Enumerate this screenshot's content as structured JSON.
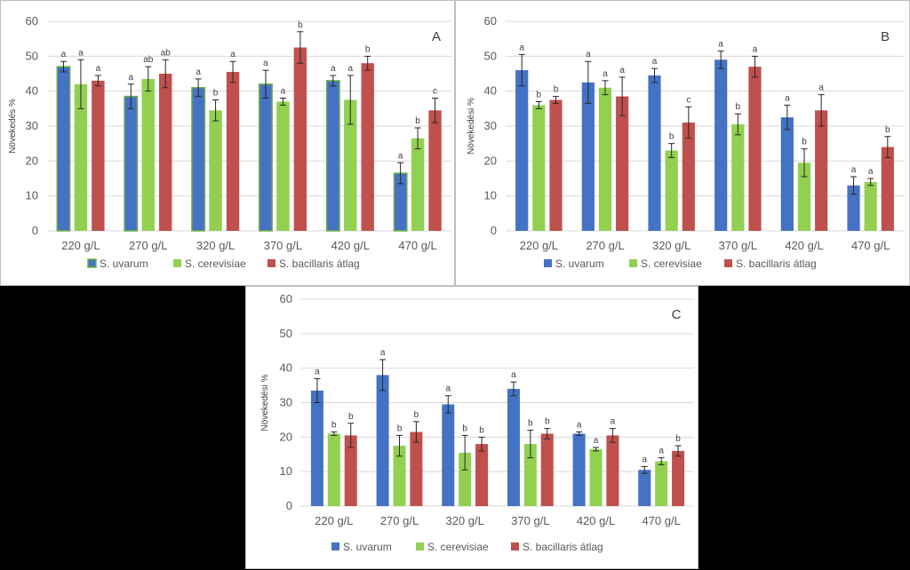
{
  "chart_data": [
    {
      "type": "bar",
      "panel_label": "A",
      "ylabel": "Növekedés %",
      "ylim": [
        0,
        60
      ],
      "yticks": [
        0,
        10,
        20,
        30,
        40,
        50,
        60
      ],
      "categories": [
        "220 g/L",
        "270 g/L",
        "320 g/L",
        "370 g/L",
        "420 g/L",
        "470 g/L"
      ],
      "series": [
        {
          "name": "S. uvarum",
          "color": "#4472c4",
          "values": [
            47,
            38.5,
            41,
            42,
            43,
            16.5
          ],
          "errors": [
            1.5,
            3.5,
            2.5,
            4,
            1.5,
            3
          ],
          "labels": [
            "a",
            "a",
            "a",
            "a",
            "a",
            "a"
          ]
        },
        {
          "name": "S. cerevisiae",
          "color": "#92d050",
          "values": [
            42,
            43.5,
            34.5,
            37,
            37.5,
            26.5
          ],
          "errors": [
            7,
            3.5,
            3,
            1,
            7,
            3
          ],
          "labels": [
            "a",
            "ab",
            "b",
            "a",
            "a",
            "b"
          ]
        },
        {
          "name": "S. bacillaris átlag",
          "color": "#c0504d",
          "values": [
            43,
            45,
            45.5,
            52.5,
            48,
            34.5
          ],
          "errors": [
            1.5,
            4,
            3,
            4.5,
            2,
            3.5
          ],
          "labels": [
            "a",
            "ab",
            "a",
            "b",
            "b",
            "c"
          ]
        }
      ]
    },
    {
      "type": "bar",
      "panel_label": "B",
      "ylabel": "Növekedési %",
      "ylim": [
        0,
        60
      ],
      "yticks": [
        0,
        10,
        20,
        30,
        40,
        50,
        60
      ],
      "categories": [
        "220 g/L",
        "270 g/L",
        "320 g/L",
        "370 g/L",
        "420 g/L",
        "470 g/L"
      ],
      "series": [
        {
          "name": "S. uvarum",
          "color": "#4472c4",
          "values": [
            46,
            42.5,
            44.5,
            49,
            32.5,
            13
          ],
          "errors": [
            4.5,
            6,
            2,
            2.5,
            3.5,
            2.5
          ],
          "labels": [
            "a",
            "a",
            "a",
            "a",
            "a",
            "a"
          ]
        },
        {
          "name": "S. cerevisiae",
          "color": "#92d050",
          "values": [
            36,
            41,
            23,
            30.5,
            19.5,
            14
          ],
          "errors": [
            1,
            2,
            2,
            3,
            4,
            1
          ],
          "labels": [
            "b",
            "a",
            "b",
            "b",
            "b",
            "a"
          ]
        },
        {
          "name": "S. bacillaris átlag",
          "color": "#c0504d",
          "values": [
            37.5,
            38.5,
            31,
            47,
            34.5,
            24
          ],
          "errors": [
            1,
            5.5,
            4.5,
            3,
            4.5,
            3
          ],
          "labels": [
            "b",
            "a",
            "c",
            "a",
            "a",
            "b"
          ]
        }
      ]
    },
    {
      "type": "bar",
      "panel_label": "C",
      "ylabel": "Növekedési %",
      "ylim": [
        0,
        60
      ],
      "yticks": [
        0,
        10,
        20,
        30,
        40,
        50,
        60
      ],
      "categories": [
        "220 g/L",
        "270 g/L",
        "320 g/L",
        "370 g/L",
        "420 g/L",
        "470 g/L"
      ],
      "series": [
        {
          "name": "S. uvarum",
          "color": "#4472c4",
          "values": [
            33.5,
            38,
            29.5,
            34,
            21,
            10.5
          ],
          "errors": [
            3.5,
            4.5,
            2.5,
            2,
            0.5,
            1
          ],
          "labels": [
            "a",
            "a",
            "a",
            "a",
            "a",
            "a"
          ]
        },
        {
          "name": "S. cerevisiae",
          "color": "#92d050",
          "values": [
            21,
            17.5,
            15.5,
            18,
            16.5,
            13
          ],
          "errors": [
            0.5,
            3,
            5,
            4,
            0.5,
            1
          ],
          "labels": [
            "b",
            "b",
            "b",
            "b",
            "a",
            "a"
          ]
        },
        {
          "name": "S. bacillaris átlag",
          "color": "#c0504d",
          "values": [
            20.5,
            21.5,
            18,
            21,
            20.5,
            16
          ],
          "errors": [
            3.5,
            3,
            2,
            1.5,
            2,
            1.5
          ],
          "labels": [
            "b",
            "b",
            "b",
            "b",
            "a",
            "b"
          ]
        }
      ]
    }
  ]
}
